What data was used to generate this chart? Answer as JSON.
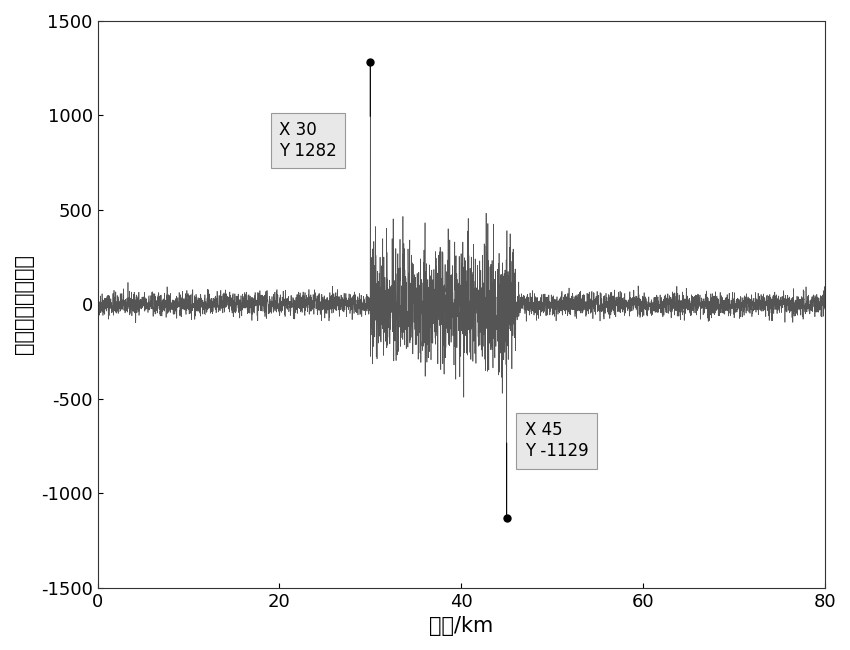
{
  "title": "",
  "xlabel": "距离/km",
  "ylabel": "回波时延估计结果",
  "xlim": [
    0,
    80
  ],
  "ylim": [
    -1500,
    1500
  ],
  "xticks": [
    0,
    20,
    40,
    60,
    80
  ],
  "yticks": [
    -1500,
    -1000,
    -500,
    0,
    500,
    1000,
    1500
  ],
  "peak1_x": 30,
  "peak1_y": 1282,
  "peak2_x": 45,
  "peak2_y": -1129,
  "noise_amplitude": 30,
  "signal_color": "#555555",
  "annotation_box_color": "#e0e0e0",
  "annotation_text_color": "#000000",
  "spike_region_start": 30,
  "spike_region_end": 46,
  "spike_amplitude": 150,
  "n_points": 5000,
  "random_seed": 42,
  "background_color": "#ffffff",
  "line_width": 0.5
}
